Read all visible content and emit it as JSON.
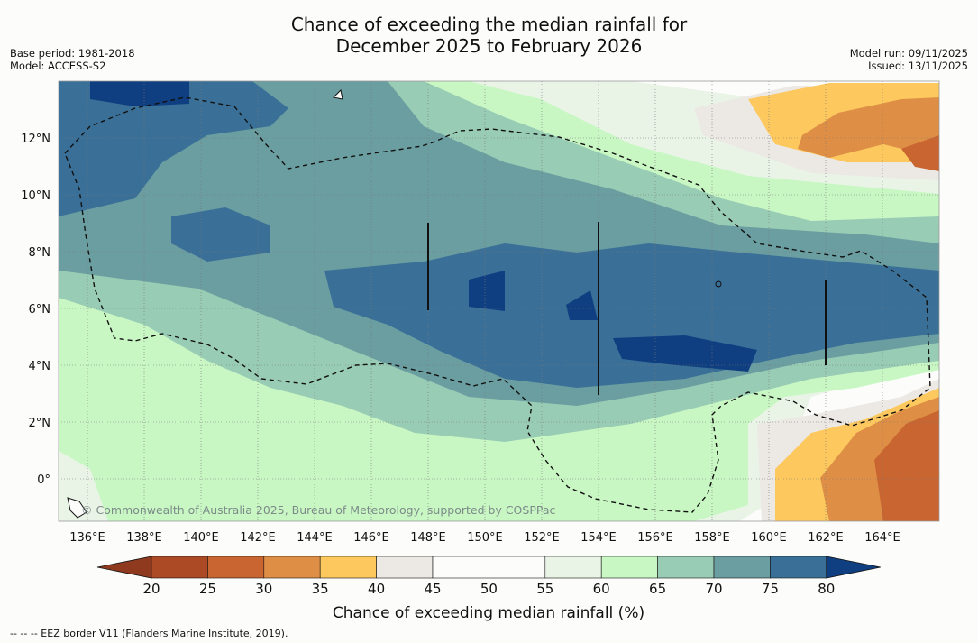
{
  "title_line1": "Chance of exceeding the median rainfall for",
  "title_line2": "December 2025 to February 2026",
  "base_period": "Base period: 1981-2018",
  "model": "Model: ACCESS-S2",
  "model_run": "Model run: 09/11/2025",
  "issued": "Issued: 13/11/2025",
  "copyright": "© Commonwealth of Australia 2025, Bureau of Meteorology, supported by COSPPac",
  "lon_labels": [
    "136°E",
    "138°E",
    "140°E",
    "142°E",
    "144°E",
    "146°E",
    "148°E",
    "150°E",
    "152°E",
    "154°E",
    "156°E",
    "158°E",
    "160°E",
    "162°E",
    "164°E"
  ],
  "lat_labels": [
    "12°N",
    "10°N",
    "8°N",
    "6°N",
    "4°N",
    "2°N",
    "0°"
  ],
  "colorbar": {
    "ticks": [
      "20",
      "25",
      "30",
      "35",
      "40",
      "45",
      "50",
      "55",
      "60",
      "65",
      "70",
      "75",
      "80"
    ],
    "colors": [
      "#8f3a1e",
      "#ab4a25",
      "#c96530",
      "#de8f45",
      "#fdc95f",
      "#ece8e4",
      "#fcfdfb",
      "#fcfdfb",
      "#e9f4e7",
      "#c9f7c4",
      "#99ccb4",
      "#6b9ea0",
      "#3a7098",
      "#0f3f80"
    ],
    "label": "Chance of exceeding median rainfall (%)"
  },
  "legend_note": "--  --  -- EEZ border V11 (Flanders Marine Institute, 2019)."
}
